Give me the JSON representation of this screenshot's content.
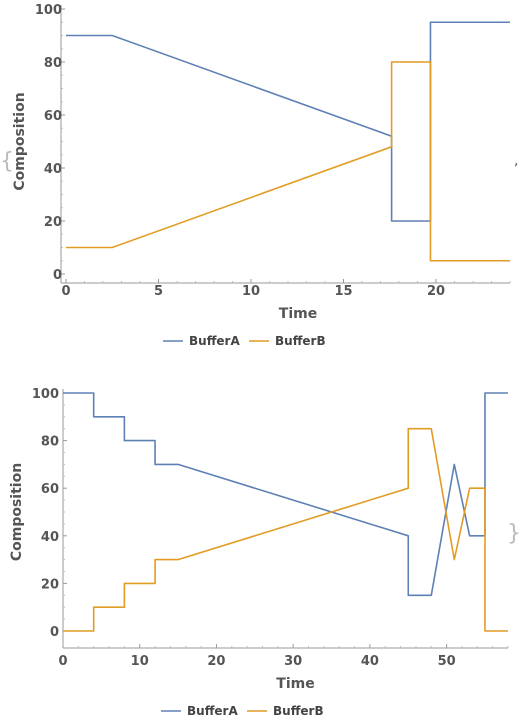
{
  "decor": {
    "open_brace": "{",
    "close_brace": "}",
    "separator": ","
  },
  "chart_data": [
    {
      "type": "line",
      "xlabel": "Time",
      "ylabel": "Composition",
      "xlim": [
        0,
        24
      ],
      "ylim": [
        0,
        100
      ],
      "xticks": [
        0,
        5,
        10,
        15,
        20
      ],
      "yticks": [
        0,
        20,
        40,
        60,
        80,
        100
      ],
      "legend_position": "bottom",
      "series": [
        {
          "name": "BufferA",
          "color": "#5E81B5",
          "points": [
            [
              0,
              90
            ],
            [
              2.5,
              90
            ],
            [
              17.6,
              52
            ],
            [
              17.6,
              20
            ],
            [
              19.7,
              20
            ],
            [
              19.7,
              95
            ],
            [
              24,
              95
            ]
          ]
        },
        {
          "name": "BufferB",
          "color": "#E19C24",
          "points": [
            [
              0,
              10
            ],
            [
              2.5,
              10
            ],
            [
              17.6,
              48
            ],
            [
              17.6,
              80
            ],
            [
              19.7,
              80
            ],
            [
              19.7,
              5
            ],
            [
              24,
              5
            ]
          ]
        }
      ]
    },
    {
      "type": "line",
      "xlabel": "Time",
      "ylabel": "Composition",
      "xlim": [
        0,
        58
      ],
      "ylim": [
        0,
        100
      ],
      "xticks": [
        0,
        10,
        20,
        30,
        40,
        50
      ],
      "yticks": [
        0,
        20,
        40,
        60,
        80,
        100
      ],
      "legend_position": "bottom",
      "series": [
        {
          "name": "BufferA",
          "color": "#5E81B5",
          "points": [
            [
              0,
              100
            ],
            [
              4,
              100
            ],
            [
              4,
              90
            ],
            [
              8,
              90
            ],
            [
              8,
              80
            ],
            [
              12,
              80
            ],
            [
              12,
              70
            ],
            [
              15,
              70
            ],
            [
              45,
              40
            ],
            [
              45,
              15
            ],
            [
              48,
              15
            ],
            [
              51,
              70
            ],
            [
              53,
              40
            ],
            [
              55,
              40
            ],
            [
              55,
              100
            ],
            [
              58,
              100
            ]
          ]
        },
        {
          "name": "BufferB",
          "color": "#E19C24",
          "points": [
            [
              0,
              0
            ],
            [
              4,
              0
            ],
            [
              4,
              10
            ],
            [
              8,
              10
            ],
            [
              8,
              20
            ],
            [
              12,
              20
            ],
            [
              12,
              30
            ],
            [
              15,
              30
            ],
            [
              45,
              60
            ],
            [
              45,
              85
            ],
            [
              48,
              85
            ],
            [
              51,
              30
            ],
            [
              53,
              60
            ],
            [
              55,
              60
            ],
            [
              55,
              0
            ],
            [
              58,
              0
            ]
          ]
        }
      ]
    }
  ]
}
